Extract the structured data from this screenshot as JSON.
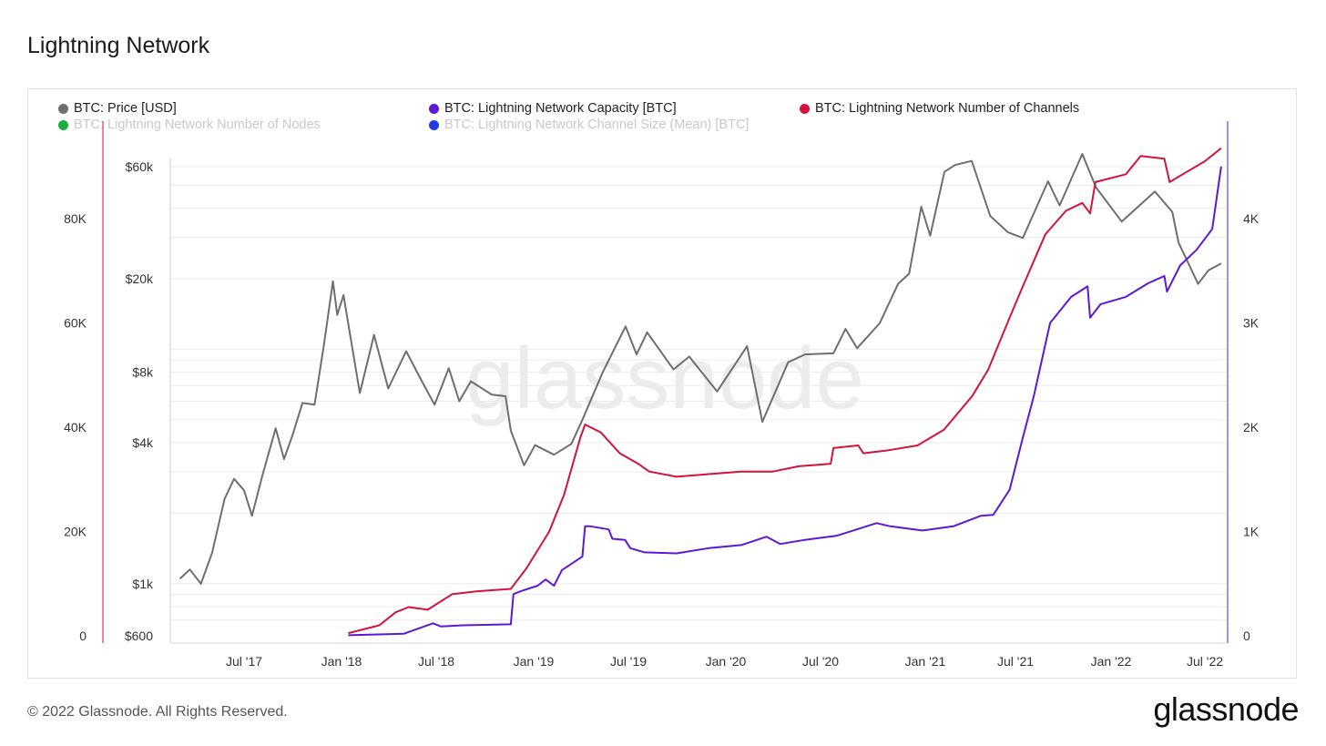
{
  "page": {
    "title": "Lightning Network",
    "footer": "© 2022 Glassnode. All Rights Reserved.",
    "brand": "glassnode",
    "watermark": "glassnode"
  },
  "chart_data": {
    "type": "line",
    "title": "Lightning Network",
    "grid": true,
    "legend_placement": "top",
    "x_ticks": [
      "Jul '17",
      "Jan '18",
      "Jul '18",
      "Jan '19",
      "Jul '19",
      "Jan '20",
      "Jul '20",
      "Jan '21",
      "Jul '21",
      "Jan '22",
      "Jul '22"
    ],
    "axes": {
      "price_usd": {
        "scale": "log",
        "range": [
          600,
          80000
        ],
        "ticks": [
          "$600",
          "$1k",
          "$4k",
          "$8k",
          "$20k",
          "$60k"
        ],
        "tick_values": [
          600,
          1000,
          4000,
          8000,
          20000,
          60000
        ]
      },
      "capacity_btc": {
        "scale": "linear",
        "range": [
          0,
          5000
        ],
        "ticks": [
          "0",
          "1K",
          "2K",
          "3K",
          "4K"
        ],
        "tick_values": [
          0,
          1000,
          2000,
          3000,
          4000
        ]
      },
      "channels": {
        "scale": "linear",
        "range": [
          0,
          100000
        ],
        "ticks": [
          "0",
          "20K",
          "40K",
          "60K",
          "80K"
        ],
        "tick_values": [
          0,
          20000,
          40000,
          60000,
          80000
        ]
      }
    },
    "series": [
      {
        "name": "BTC: Price [USD]",
        "color": "#6e6e6e",
        "axis": "price_usd",
        "visible": true,
        "points": [
          [
            "2017-03-01",
            1050
          ],
          [
            "2017-03-20",
            1150
          ],
          [
            "2017-04-10",
            1000
          ],
          [
            "2017-05-01",
            1350
          ],
          [
            "2017-05-25",
            2300
          ],
          [
            "2017-06-12",
            2800
          ],
          [
            "2017-07-01",
            2500
          ],
          [
            "2017-07-16",
            1950
          ],
          [
            "2017-08-05",
            2900
          ],
          [
            "2017-08-30",
            4600
          ],
          [
            "2017-09-15",
            3400
          ],
          [
            "2017-10-01",
            4300
          ],
          [
            "2017-10-20",
            5900
          ],
          [
            "2017-11-12",
            5800
          ],
          [
            "2017-11-30",
            10500
          ],
          [
            "2017-12-17",
            19500
          ],
          [
            "2017-12-25",
            14000
          ],
          [
            "2018-01-06",
            17000
          ],
          [
            "2018-01-20",
            11000
          ],
          [
            "2018-02-06",
            6500
          ],
          [
            "2018-03-05",
            11500
          ],
          [
            "2018-04-01",
            6800
          ],
          [
            "2018-05-05",
            9800
          ],
          [
            "2018-06-01",
            7500
          ],
          [
            "2018-06-28",
            5800
          ],
          [
            "2018-07-25",
            8300
          ],
          [
            "2018-08-14",
            6000
          ],
          [
            "2018-09-05",
            7300
          ],
          [
            "2018-10-15",
            6400
          ],
          [
            "2018-11-10",
            6300
          ],
          [
            "2018-11-20",
            4500
          ],
          [
            "2018-12-15",
            3200
          ],
          [
            "2019-01-05",
            3900
          ],
          [
            "2019-02-10",
            3550
          ],
          [
            "2019-03-15",
            3950
          ],
          [
            "2019-04-05",
            5000
          ],
          [
            "2019-05-14",
            8000
          ],
          [
            "2019-06-26",
            12500
          ],
          [
            "2019-07-17",
            9500
          ],
          [
            "2019-08-06",
            11800
          ],
          [
            "2019-09-25",
            8200
          ],
          [
            "2019-10-25",
            9300
          ],
          [
            "2019-12-17",
            6600
          ],
          [
            "2020-02-12",
            10300
          ],
          [
            "2020-03-12",
            4900
          ],
          [
            "2020-04-30",
            8800
          ],
          [
            "2020-06-01",
            9500
          ],
          [
            "2020-07-25",
            9600
          ],
          [
            "2020-08-17",
            12200
          ],
          [
            "2020-09-08",
            10100
          ],
          [
            "2020-10-21",
            12900
          ],
          [
            "2020-11-25",
            19000
          ],
          [
            "2020-12-16",
            21000
          ],
          [
            "2021-01-08",
            40500
          ],
          [
            "2021-01-25",
            30500
          ],
          [
            "2021-02-21",
            57000
          ],
          [
            "2021-03-13",
            61000
          ],
          [
            "2021-04-14",
            63500
          ],
          [
            "2021-05-19",
            37000
          ],
          [
            "2021-06-22",
            31500
          ],
          [
            "2021-07-20",
            29800
          ],
          [
            "2021-09-06",
            52000
          ],
          [
            "2021-09-28",
            41000
          ],
          [
            "2021-11-10",
            68000
          ],
          [
            "2021-12-06",
            49000
          ],
          [
            "2022-01-24",
            35000
          ],
          [
            "2022-03-28",
            47000
          ],
          [
            "2022-04-30",
            38500
          ],
          [
            "2022-05-12",
            28500
          ],
          [
            "2022-06-18",
            19000
          ],
          [
            "2022-07-08",
            21700
          ],
          [
            "2022-08-01",
            23200
          ]
        ]
      },
      {
        "name": "BTC: Lightning Network Capacity [BTC]",
        "color": "#5b19d6",
        "axis": "capacity_btc",
        "visible": true,
        "points": [
          [
            "2018-01-15",
            5
          ],
          [
            "2018-05-01",
            20
          ],
          [
            "2018-06-25",
            120
          ],
          [
            "2018-07-10",
            90
          ],
          [
            "2018-08-20",
            100
          ],
          [
            "2018-11-20",
            110
          ],
          [
            "2018-11-25",
            400
          ],
          [
            "2018-12-10",
            430
          ],
          [
            "2019-01-10",
            480
          ],
          [
            "2019-01-25",
            540
          ],
          [
            "2019-02-10",
            480
          ],
          [
            "2019-02-25",
            630
          ],
          [
            "2019-04-05",
            760
          ],
          [
            "2019-04-10",
            1050
          ],
          [
            "2019-04-20",
            1050
          ],
          [
            "2019-05-25",
            1020
          ],
          [
            "2019-06-01",
            930
          ],
          [
            "2019-06-25",
            920
          ],
          [
            "2019-07-05",
            840
          ],
          [
            "2019-08-01",
            800
          ],
          [
            "2019-10-01",
            790
          ],
          [
            "2019-12-01",
            840
          ],
          [
            "2020-02-01",
            870
          ],
          [
            "2020-03-20",
            950
          ],
          [
            "2020-04-15",
            880
          ],
          [
            "2020-06-01",
            920
          ],
          [
            "2020-08-01",
            960
          ],
          [
            "2020-10-15",
            1080
          ],
          [
            "2020-11-10",
            1050
          ],
          [
            "2021-01-10",
            1010
          ],
          [
            "2021-03-10",
            1050
          ],
          [
            "2021-05-01",
            1150
          ],
          [
            "2021-05-25",
            1160
          ],
          [
            "2021-06-25",
            1400
          ],
          [
            "2021-07-20",
            1900
          ],
          [
            "2021-08-10",
            2300
          ],
          [
            "2021-09-10",
            3000
          ],
          [
            "2021-10-20",
            3250
          ],
          [
            "2021-11-20",
            3350
          ],
          [
            "2021-11-25",
            3050
          ],
          [
            "2021-12-15",
            3180
          ],
          [
            "2022-02-01",
            3250
          ],
          [
            "2022-03-15",
            3380
          ],
          [
            "2022-04-15",
            3450
          ],
          [
            "2022-04-20",
            3300
          ],
          [
            "2022-05-15",
            3550
          ],
          [
            "2022-06-15",
            3700
          ],
          [
            "2022-07-15",
            3900
          ],
          [
            "2022-08-01",
            4500
          ]
        ]
      },
      {
        "name": "BTC: Lightning Network Number of Channels",
        "color": "#d2143c",
        "axis": "channels",
        "visible": true,
        "points": [
          [
            "2018-01-15",
            500
          ],
          [
            "2018-03-15",
            2000
          ],
          [
            "2018-04-15",
            4500
          ],
          [
            "2018-05-10",
            5500
          ],
          [
            "2018-06-15",
            5000
          ],
          [
            "2018-08-01",
            8000
          ],
          [
            "2018-09-15",
            8500
          ],
          [
            "2018-11-20",
            9000
          ],
          [
            "2018-12-20",
            13000
          ],
          [
            "2019-02-01",
            20000
          ],
          [
            "2019-03-01",
            27000
          ],
          [
            "2019-04-01",
            38000
          ],
          [
            "2019-04-10",
            40500
          ],
          [
            "2019-05-10",
            39000
          ],
          [
            "2019-06-15",
            35000
          ],
          [
            "2019-07-20",
            33000
          ],
          [
            "2019-08-10",
            31500
          ],
          [
            "2019-10-01",
            30500
          ],
          [
            "2019-12-01",
            31000
          ],
          [
            "2020-02-01",
            31500
          ],
          [
            "2020-04-01",
            31500
          ],
          [
            "2020-05-20",
            32500
          ],
          [
            "2020-07-20",
            33000
          ],
          [
            "2020-07-25",
            36000
          ],
          [
            "2020-09-10",
            36500
          ],
          [
            "2020-09-20",
            35000
          ],
          [
            "2020-11-01",
            35500
          ],
          [
            "2021-01-01",
            36500
          ],
          [
            "2021-02-20",
            39500
          ],
          [
            "2021-04-15",
            46000
          ],
          [
            "2021-05-15",
            51000
          ],
          [
            "2021-06-25",
            61000
          ],
          [
            "2021-07-20",
            67000
          ],
          [
            "2021-09-01",
            77000
          ],
          [
            "2021-10-10",
            81500
          ],
          [
            "2021-11-10",
            83000
          ],
          [
            "2021-11-25",
            81000
          ],
          [
            "2021-12-05",
            87000
          ],
          [
            "2022-02-01",
            88500
          ],
          [
            "2022-03-01",
            92000
          ],
          [
            "2022-04-15",
            91500
          ],
          [
            "2022-04-25",
            87000
          ],
          [
            "2022-05-20",
            88500
          ],
          [
            "2022-07-01",
            91000
          ],
          [
            "2022-08-01",
            93500
          ]
        ]
      },
      {
        "name": "BTC: Lightning Network Number of Nodes",
        "color": "#1bad3f",
        "visible": false
      },
      {
        "name": "BTC: Lightning Network Channel Size (Mean) [BTC]",
        "color": "#1f3de0",
        "visible": false
      }
    ]
  }
}
